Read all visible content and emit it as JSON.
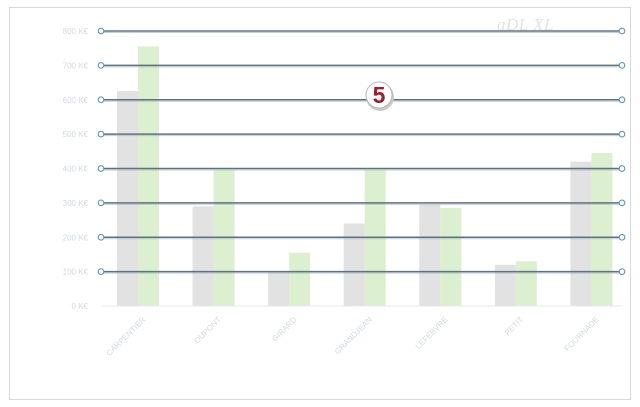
{
  "watermark": "aDL XL",
  "badge": "5",
  "colors": {
    "series1": "#e2e2e2",
    "series2": "#dcefcf",
    "gridline": "#5d7380",
    "gridline_shadow": "#9bb0bf",
    "handle_fill": "#ffffff",
    "handle_stroke": "#5b95c5",
    "axis_text": "#cfdae4",
    "badge_fill": "#ffffff",
    "badge_text": "#a6192e"
  },
  "chart_data": {
    "type": "bar",
    "categories": [
      "CARPENTIER",
      "DUPONT",
      "GIRARD",
      "GRANDJEAN",
      "LEFEBVRE",
      "PETIT",
      "FOURNADE"
    ],
    "series": [
      {
        "values": [
          625,
          290,
          100,
          240,
          295,
          120,
          420
        ]
      },
      {
        "values": [
          755,
          395,
          155,
          395,
          285,
          130,
          445
        ]
      }
    ],
    "yticks": [
      "0 K€",
      "100 K€",
      "200 K€",
      "300 K€",
      "400 K€",
      "500 K€",
      "600 K€",
      "700 K€",
      "800 K€"
    ],
    "ylim": [
      0,
      800
    ],
    "grid": true,
    "xlabel": "",
    "ylabel": "",
    "title": ""
  }
}
